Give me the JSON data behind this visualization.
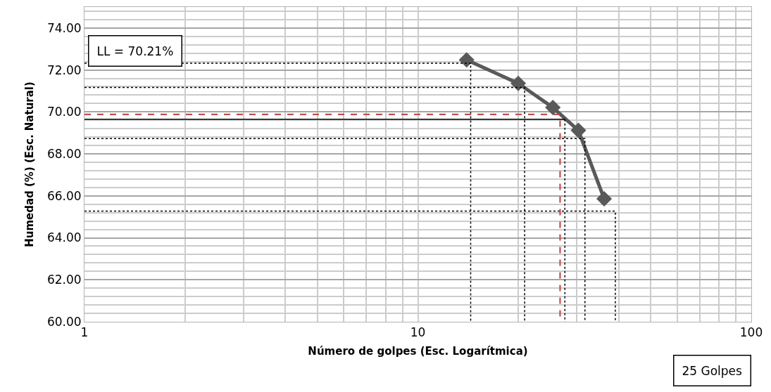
{
  "chart_data": {
    "type": "line",
    "xlabel": "Número de golpes (Esc. Logarítmica)",
    "ylabel": "Humedad (%) (Esc. Natural)",
    "log": "x",
    "xlim": [
      1,
      100
    ],
    "xticks": [
      1,
      10,
      100
    ],
    "ylim": [
      60,
      75
    ],
    "yticks": [
      {
        "value": 60,
        "label": "60.00"
      },
      {
        "value": 62,
        "label": "62.00"
      },
      {
        "value": 64,
        "label": "64.00"
      },
      {
        "value": 66,
        "label": "66.00"
      },
      {
        "value": 68,
        "label": "68.00"
      },
      {
        "value": 70,
        "label": "70.00"
      },
      {
        "value": 72,
        "label": "72.00"
      },
      {
        "value": 74,
        "label": "74.00"
      }
    ],
    "grid": true,
    "series": [
      {
        "color": "#595959",
        "x": [
          14.0,
          20.0,
          25.4,
          30.3,
          36.2
        ],
        "values": [
          72.48,
          71.36,
          70.21,
          69.12,
          65.86
        ],
        "marker": "diamond",
        "line_style": "solid"
      },
      {
        "color": "#000000",
        "x": [
          1,
          14.4,
          14.4
        ],
        "values": [
          72.32,
          72.32,
          60
        ],
        "marker": "none",
        "line_style": "dotted"
      },
      {
        "color": "#000000",
        "x": [
          1,
          20.9,
          20.9
        ],
        "values": [
          71.17,
          71.17,
          60
        ],
        "marker": "none",
        "line_style": "dotted"
      },
      {
        "color": "#000000",
        "x": [
          1,
          27.6
        ],
        "values": [
          69.65,
          69.65
        ],
        "marker": "none",
        "line_style": "solid"
      },
      {
        "color": "#000000",
        "x": [
          27.6,
          27.6
        ],
        "values": [
          69.65,
          60
        ],
        "marker": "none",
        "line_style": "dotted"
      },
      {
        "color": "#000000",
        "x": [
          1,
          31.7,
          31.7
        ],
        "values": [
          68.73,
          68.73,
          60
        ],
        "marker": "none",
        "line_style": "dotted"
      },
      {
        "color": "#000000",
        "x": [
          1,
          39.1,
          39.1
        ],
        "values": [
          65.27,
          65.27,
          60
        ],
        "marker": "none",
        "line_style": "dotted"
      },
      {
        "color": "#c0504d",
        "x": [
          1,
          26.7,
          26.7
        ],
        "values": [
          69.88,
          69.88,
          60
        ],
        "marker": "none",
        "line_style": "dashed"
      }
    ],
    "annotations": [
      "LL = 70.21%",
      "25 Golpes"
    ]
  }
}
